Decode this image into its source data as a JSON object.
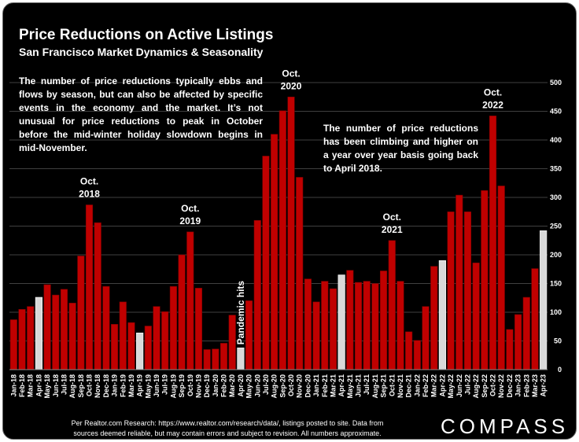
{
  "title": "Price Reductions on Active Listings",
  "subtitle": "San Francisco Market Dynamics & Seasonality",
  "note_left": "The number of price reductions typically ebbs and flows by season, but can also be affected by specific events in the economy and the market. It’s not unusual for price reductions to peak in October before the mid-winter holiday slowdown begins in mid-November.",
  "note_right": "The number of price reductions has been climbing and higher on a year over year basis going back to April 2018.",
  "footer_line1": "Per Realtor.com Research:  https://www.realtor.com/research/data/, listings posted to site. Data from",
  "footer_line2": "sources deemed reliable, but may contain errors and subject to revision. All numbers approximate.",
  "brand": "COMPASS",
  "colors": {
    "bar": "#c00000",
    "highlight": "#d9d9d9",
    "background": "#000000",
    "grid": "#404040"
  },
  "chart_data": {
    "type": "bar",
    "categories": [
      "Jan-18",
      "Feb-18",
      "Mar-18",
      "Apr-18",
      "May-18",
      "Jun-18",
      "Jul-18",
      "Aug-18",
      "Sep-18",
      "Oct-18",
      "Nov-18",
      "Dec-18",
      "Jan-19",
      "Feb-19",
      "Mar-19",
      "Apr-19",
      "May-19",
      "Jun-19",
      "Jul-19",
      "Aug-19",
      "Sep-19",
      "Oct-19",
      "Nov-19",
      "Dec-19",
      "Jan-20",
      "Feb-20",
      "Mar-20",
      "Apr-20",
      "May-20",
      "Jun-20",
      "Jul-20",
      "Aug-20",
      "Sep-20",
      "Oct-20",
      "Nov-20",
      "Dec-20",
      "Jan-21",
      "Feb-21",
      "Mar-21",
      "Apr-21",
      "May-21",
      "Jun-21",
      "Jul-21",
      "Aug-21",
      "Sep-21",
      "Oct-21",
      "Nov-21",
      "Dec-21",
      "Jan-22",
      "Feb-22",
      "Mar-22",
      "Apr-22",
      "May-22",
      "Jun-22",
      "Jul-22",
      "Aug-22",
      "Sep-22",
      "Oct-22",
      "Nov-22",
      "Dec-22",
      "Jan-23",
      "Feb-23",
      "Mar-23",
      "Apr-23"
    ],
    "values": [
      87,
      105,
      110,
      126,
      148,
      130,
      140,
      116,
      198,
      287,
      256,
      145,
      79,
      118,
      82,
      64,
      76,
      110,
      101,
      145,
      200,
      240,
      142,
      35,
      36,
      46,
      95,
      38,
      120,
      260,
      372,
      410,
      451,
      475,
      335,
      158,
      118,
      154,
      141,
      165,
      173,
      152,
      154,
      150,
      172,
      225,
      154,
      66,
      51,
      110,
      180,
      190,
      275,
      304,
      275,
      186,
      312,
      442,
      320,
      70,
      96,
      126,
      176,
      242
    ],
    "highlight_categories": [
      "Apr-18",
      "Apr-19",
      "Apr-20",
      "Apr-21",
      "Apr-22",
      "Apr-23"
    ],
    "ylim": [
      0,
      500
    ],
    "yticks": [
      0,
      50,
      100,
      150,
      200,
      250,
      300,
      350,
      400,
      450,
      500
    ],
    "y_axis_side": "right",
    "grid": true,
    "annotations": [
      {
        "category": "Oct-18",
        "line1": "Oct.",
        "line2": "2018"
      },
      {
        "category": "Oct-19",
        "line1": "Oct.",
        "line2": "2019"
      },
      {
        "category": "Oct-20",
        "line1": "Oct.",
        "line2": "2020"
      },
      {
        "category": "Oct-21",
        "line1": "Oct.",
        "line2": "2021"
      },
      {
        "category": "Oct-22",
        "line1": "Oct.",
        "line2": "2022"
      }
    ],
    "pandemic_label": {
      "category": "Apr-20",
      "text": "Pandemic hits"
    }
  }
}
